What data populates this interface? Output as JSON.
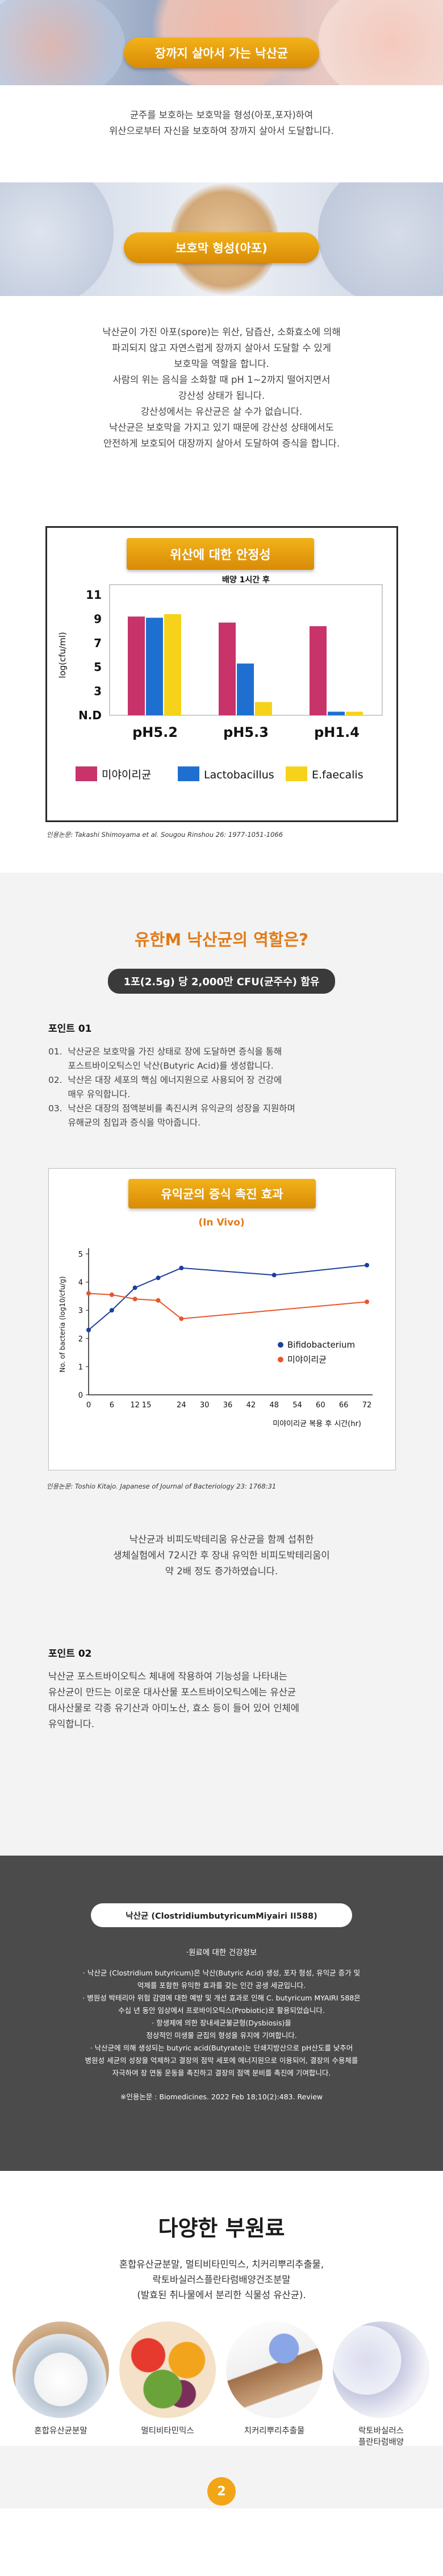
{
  "hero1": {
    "title": "장까지 살아서 가는 낙산균"
  },
  "intro": {
    "lines": [
      "균주를 보호하는 보호막을 형성(아포,포자)하여",
      "위산으로부터 자신을 보호하여 장까지 살아서 도달합니다."
    ]
  },
  "hero2": {
    "title": "보호막 형성(아포)"
  },
  "spore": {
    "lines": [
      "낙산균이 가진 아포(spore)는 위산, 담즙산, 소화효소에 의해",
      "파괴되지 않고 자연스럽게 장까지 살아서 도달할 수 있게",
      "보호막을 역할을 합니다.",
      "사람의 위는 음식을 소화할 때 pH 1~2까지 떨어지면서",
      "강산성 상태가 됩니다.",
      "강산성에서는 유산균은 살 수가 없습니다.",
      "낙산균은 보호막을 가지고 있기 때문에 강산성 상태에서도",
      "안전하게 보호되어 대장까지 살아서 도달하여 증식을 합니다."
    ]
  },
  "chart1_labels": {
    "title": "위산에 대한 안정성",
    "annotation": "배양 1시간 후",
    "ylabel": "log(cfu/ml)",
    "yticks": [
      "11",
      "9",
      "7",
      "5",
      "3",
      "N.D"
    ],
    "caption": "인용논문: Takashi Shimoyama et al. Sougou Rinshou 26: 1977-1051-1066"
  },
  "chart_data": [
    {
      "type": "bar",
      "title": "위산에 대한 안정성",
      "subtitle": "배양 1시간 후",
      "ylabel": "log(cfu/ml)",
      "ylim": [
        1,
        11
      ],
      "yticks": [
        "N.D",
        3,
        5,
        7,
        9,
        11
      ],
      "categories": [
        "pH5.2",
        "pH5.3",
        "pH1.4"
      ],
      "series": [
        {
          "name": "미야이리균",
          "color": "#c8336a",
          "values": [
            9.2,
            8.7,
            8.4
          ]
        },
        {
          "name": "Lactobacillus",
          "color": "#1f6fd1",
          "values": [
            9.1,
            5.3,
            1.3
          ]
        },
        {
          "name": "E.faecalis",
          "color": "#f7d21a",
          "values": [
            9.4,
            2.1,
            1.3
          ]
        }
      ],
      "legend": "bottom"
    },
    {
      "type": "line",
      "title": "유익균의 증식 촉진 효과",
      "subtitle": "(In Vivo)",
      "xlabel": "미야이리균 복용 후 시간(hr)",
      "ylabel": "No. of bacteria (log10/cfu/g)",
      "x": [
        0,
        6,
        12,
        15,
        24,
        30,
        36,
        42,
        48,
        54,
        60,
        66,
        72
      ],
      "xlim": [
        0,
        72
      ],
      "ylim": [
        0,
        5
      ],
      "series": [
        {
          "name": "Bifidobacterium",
          "color": "#1c3f9a",
          "points": [
            [
              0,
              2.3
            ],
            [
              6,
              3.0
            ],
            [
              12,
              3.8
            ],
            [
              18,
              4.15
            ],
            [
              24,
              4.5
            ],
            [
              48,
              4.25
            ],
            [
              72,
              4.6
            ]
          ]
        },
        {
          "name": "미야이리균",
          "color": "#e8552a",
          "points": [
            [
              0,
              3.6
            ],
            [
              6,
              3.55
            ],
            [
              12,
              3.4
            ],
            [
              18,
              3.35
            ],
            [
              24,
              2.7
            ],
            [
              72,
              3.3
            ]
          ]
        }
      ],
      "legend": "right"
    }
  ],
  "role": {
    "title": "유한M 낙산균의 역할은?",
    "pill": "1포(2.5g) 당 2,000만 CFU(균주수) 함유",
    "point1_title": "포인트 01",
    "point1_items": [
      "01.  낙산균은 보호막을 가진 상태로 장에 도달하면 증식을 통해",
      "       포스트바이오틱스인 낙산(Butyric Acid)를 생성합니다.",
      "02.  낙산은 대장 세포의 핵심 에너지원으로 사용되어 장 건강에",
      "       매우 유익합니다.",
      "03.  낙산은 대장의 점액분비를 촉진시켜 유익균의 성장을 지원하며",
      "       유해균의 침입과 증식을 막아줍니다."
    ]
  },
  "chart2_labels": {
    "title": "유익균의 증식 촉진 효과",
    "subtitle": "(In Vivo)",
    "ylabel": "No. of bacteria (log10/cfu/g)",
    "xlabel": "미야이리균 복용 후 시간(hr)",
    "yticks": [
      "5",
      "4",
      "3",
      "2",
      "1",
      "0"
    ],
    "xticks": [
      "0",
      "6",
      "12",
      "15",
      "24",
      "30",
      "36",
      "42",
      "48",
      "54",
      "60",
      "66",
      "72"
    ],
    "legend1": "Bifidobacterium",
    "legend2": "미야이리균",
    "caption": "인용논문: Toshio Kitajo. Japanese of Journal of Bacteriology 23: 1768:31"
  },
  "growth": {
    "lines": [
      "낙산균과 비피도박테리움 유산균을 함께 섭취한",
      "생체실험에서 72시간 후 장내 유익한 비피도박테리움이",
      "약 2배 정도 증가하였습니다."
    ]
  },
  "point2": {
    "title": "포인트 02",
    "lines": [
      "낙산균 포스트바이오틱스 체내에 작용하여 기능성을 나타내는",
      "유산균이 만드는 이로운 대사산물 포스트바이오틱스에는 유산균",
      "대사산물로 각종 유기산과 아미노산, 효소 등이 들어 있어 인체에",
      "유익합니다."
    ]
  },
  "strain": {
    "name": "낙산균 (ClostridiumbutyricumMiyairi II588)",
    "subtitle": "·원료에 대한 건강정보",
    "lines": [
      "· 낙산균 (Clostridium butyricum)은 낙산(Butyric Acid) 생성, 포자 형성, 유익균 증가 및",
      "억제를 포함한 유익한 효과를 갖는 인간 공생 세균입니다.",
      "· 병원성 박테리아 위험 감염에 대한 예방 및 개선 효과로 인해 C. butyricum MYAIRI 588은",
      "수십 년 동안 임상에서 프로바이오틱스(Probiotic)로 활용되었습니다.",
      "· 항생제에 의한 장내세균불균형(Dysbiosis)을",
      "정상적인 미생물 균집의 형성을 유지에 기여합니다.",
      "· 낙산균에 의해 생성되는 butyric acid(Butyrate)는 단쇄지방산으로 pH산도를 낮추어",
      "병원성 세균의 성장을 억제하고 결장의 점막 세포에 에너지원으로 이용되어, 결장의 수용체를",
      "자극하여 장 연동 운동을 촉진하고 결장의 점액 분비를 촉진에 기여합니다."
    ],
    "citation": "※인용논문 : Biomedicines. 2022 Feb 18;10(2):483. Review"
  },
  "ingredients": {
    "title": "다양한 부원료",
    "lines": [
      "혼합유산균분말, 멀티비타민믹스, 치커리뿌리추출물,",
      "락토바실러스플란타럼배양건조분말",
      "(발효된 취나물에서 분리한 식물성 유산균)."
    ],
    "items": [
      {
        "label": "혼합유산균분말"
      },
      {
        "label": "멀티비타민믹스"
      },
      {
        "label": "치커리뿌리추출물"
      },
      {
        "label": "락토바실러스\n플란타럼배양\n건조분말"
      }
    ],
    "footer_number": "2"
  }
}
